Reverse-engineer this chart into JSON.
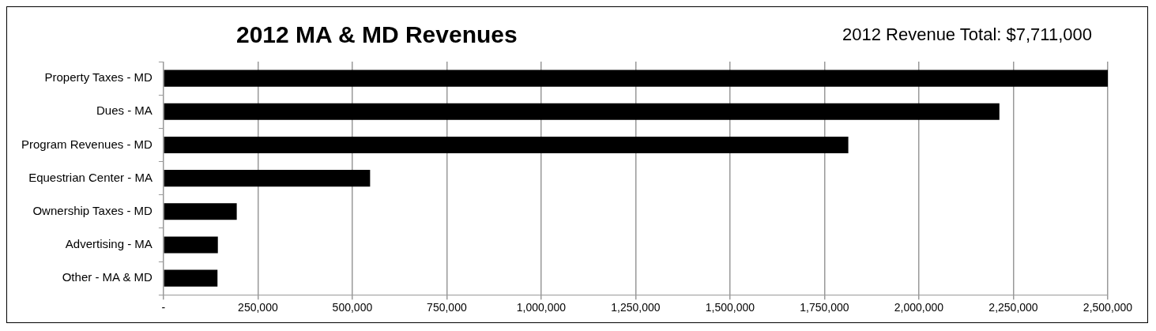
{
  "chart_data": {
    "type": "bar",
    "orientation": "horizontal",
    "title": "2012 MA & MD Revenues",
    "subtitle": "2012 Revenue Total: $7,711,000",
    "categories": [
      "Property Taxes - MD",
      "Dues - MA",
      "Program Revenues - MD",
      "Equestrian Center - MA",
      "Ownership Taxes - MD",
      "Advertising - MA",
      "Other - MA & MD"
    ],
    "values": [
      2500000,
      2213000,
      1813000,
      547000,
      194000,
      144000,
      143000
    ],
    "color": "#000000",
    "xlim": [
      0,
      2500000
    ],
    "xticks": [
      {
        "value": 0,
        "label": "-"
      },
      {
        "value": 250000,
        "label": "250,000"
      },
      {
        "value": 500000,
        "label": "500,000"
      },
      {
        "value": 750000,
        "label": "750,000"
      },
      {
        "value": 1000000,
        "label": "1,000,000"
      },
      {
        "value": 1250000,
        "label": "1,250,000"
      },
      {
        "value": 1500000,
        "label": "1,500,000"
      },
      {
        "value": 1750000,
        "label": "1,750,000"
      },
      {
        "value": 2000000,
        "label": "2,000,000"
      },
      {
        "value": 2250000,
        "label": "2,250,000"
      },
      {
        "value": 2500000,
        "label": "2,500,000"
      }
    ],
    "grid": "x",
    "legend": false
  }
}
